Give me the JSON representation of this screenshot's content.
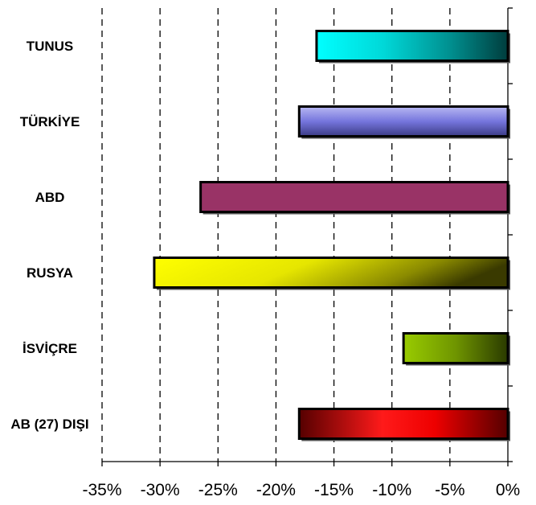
{
  "chart_data": {
    "type": "bar",
    "orientation": "horizontal",
    "categories": [
      "TUNUS",
      "TÜRKİYE",
      "ABD",
      "RUSYA",
      "İSVİÇRE",
      "AB (27) DIŞI"
    ],
    "values": [
      -16.5,
      -18.0,
      -26.5,
      -30.5,
      -9.0,
      -18.0
    ],
    "x_ticks": [
      "-35%",
      "-30%",
      "-25%",
      "-20%",
      "-15%",
      "-10%",
      "-5%",
      "0%"
    ],
    "xlim": [
      -35,
      0
    ],
    "grid": "vertical dashed",
    "legend": "none",
    "title": "",
    "xlabel": "",
    "ylabel": "",
    "bar_colors": [
      "#00e6e6",
      "#7f7fe0",
      "#993366",
      "#e6e600",
      "#99cc00",
      "#ff0000"
    ]
  }
}
